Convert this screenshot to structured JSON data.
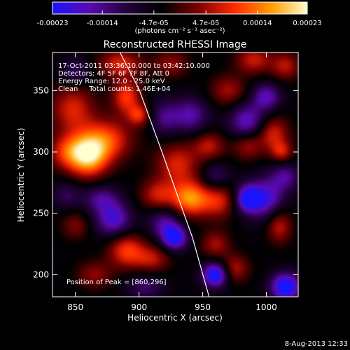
{
  "chart_data": {
    "type": "heatmap",
    "title": "Reconstructed RHESSI Image",
    "xlabel": "Heliocentric X (arcsec)",
    "ylabel": "Heliocentric Y (arcsec)",
    "xlim": [
      832,
      1025
    ],
    "ylim": [
      182,
      381
    ],
    "x_ticks": [
      850,
      900,
      950,
      1000
    ],
    "y_ticks": [
      200,
      250,
      300,
      350
    ],
    "colorbar": {
      "range": [
        -0.00023,
        0.00023
      ],
      "tick_labels": [
        "-0.00023",
        "-0.00014",
        "-4.7e-05",
        "4.7e-05",
        "0.00014",
        "0.00023"
      ],
      "units_label": "(photons cm⁻² s⁻¹ asec⁻²)",
      "colors": [
        "#1a14ff",
        "#5b0ab0",
        "#260040",
        "#000000",
        "#7a0000",
        "#ff2a00",
        "#ff9a00",
        "#ffffd0"
      ]
    },
    "annotations": {
      "time_range": "17-Oct-2011 03:36:10.000 to 03:42:10.000",
      "detectors": "Detectors: 4F 5F 6F 7F 8F, Att 0",
      "energy_range": "Energy Range: 12.0 - 25.0 keV",
      "clean_total": "Clean     Total counts: 1.46E+04",
      "peak_position": "Position of Peak = [860,296]"
    },
    "peak": {
      "x": 860,
      "y": 296
    },
    "limb_curve": [
      [
        885,
        381
      ],
      [
        900,
        351
      ],
      [
        918,
        300
      ],
      [
        930,
        265
      ],
      [
        942,
        230
      ],
      [
        955,
        182
      ]
    ],
    "blobs": [
      {
        "x": 860,
        "y": 297,
        "v": 0.00023,
        "sx": 11,
        "sy": 12
      },
      {
        "x": 875,
        "y": 310,
        "v": 0.00014,
        "sx": 14,
        "sy": 12
      },
      {
        "x": 843,
        "y": 300,
        "v": 0.00011,
        "sx": 10,
        "sy": 10
      },
      {
        "x": 848,
        "y": 335,
        "v": 0.00012,
        "sx": 12,
        "sy": 14
      },
      {
        "x": 890,
        "y": 345,
        "v": 0.00014,
        "sx": 8,
        "sy": 10
      },
      {
        "x": 900,
        "y": 330,
        "v": 0.00012,
        "sx": 6,
        "sy": 6
      },
      {
        "x": 885,
        "y": 372,
        "v": 0.00012,
        "sx": 12,
        "sy": 8
      },
      {
        "x": 925,
        "y": 372,
        "v": 8e-05,
        "sx": 10,
        "sy": 8
      },
      {
        "x": 930,
        "y": 290,
        "v": 0.00012,
        "sx": 12,
        "sy": 12
      },
      {
        "x": 940,
        "y": 262,
        "v": 0.00019,
        "sx": 10,
        "sy": 10
      },
      {
        "x": 962,
        "y": 260,
        "v": 0.00012,
        "sx": 10,
        "sy": 10
      },
      {
        "x": 955,
        "y": 305,
        "v": 0.0001,
        "sx": 9,
        "sy": 8
      },
      {
        "x": 915,
        "y": 265,
        "v": 0.00011,
        "sx": 10,
        "sy": 9
      },
      {
        "x": 970,
        "y": 350,
        "v": 9e-05,
        "sx": 10,
        "sy": 9
      },
      {
        "x": 985,
        "y": 305,
        "v": 9e-05,
        "sx": 8,
        "sy": 8
      },
      {
        "x": 1005,
        "y": 315,
        "v": 0.00012,
        "sx": 9,
        "sy": 10
      },
      {
        "x": 1012,
        "y": 300,
        "v": 0.0001,
        "sx": 6,
        "sy": 6
      },
      {
        "x": 1010,
        "y": 240,
        "v": 0.00011,
        "sx": 7,
        "sy": 10
      },
      {
        "x": 890,
        "y": 220,
        "v": 0.00014,
        "sx": 10,
        "sy": 10
      },
      {
        "x": 910,
        "y": 213,
        "v": 0.0001,
        "sx": 10,
        "sy": 8
      },
      {
        "x": 960,
        "y": 225,
        "v": 9e-05,
        "sx": 8,
        "sy": 8
      },
      {
        "x": 975,
        "y": 205,
        "v": 0.0001,
        "sx": 8,
        "sy": 8
      },
      {
        "x": 850,
        "y": 240,
        "v": 7e-05,
        "sx": 8,
        "sy": 8
      },
      {
        "x": 865,
        "y": 200,
        "v": 8e-05,
        "sx": 10,
        "sy": 8
      },
      {
        "x": 990,
        "y": 375,
        "v": 0.00011,
        "sx": 10,
        "sy": 8
      },
      {
        "x": 1015,
        "y": 370,
        "v": 0.0001,
        "sx": 8,
        "sy": 8
      },
      {
        "x": 880,
        "y": 245,
        "v": -0.00015,
        "sx": 10,
        "sy": 10
      },
      {
        "x": 870,
        "y": 262,
        "v": -0.0001,
        "sx": 10,
        "sy": 8
      },
      {
        "x": 960,
        "y": 200,
        "v": -0.00022,
        "sx": 7,
        "sy": 7
      },
      {
        "x": 1015,
        "y": 190,
        "v": -0.00022,
        "sx": 8,
        "sy": 8
      },
      {
        "x": 1000,
        "y": 262,
        "v": -0.00015,
        "sx": 10,
        "sy": 12
      },
      {
        "x": 985,
        "y": 262,
        "v": -0.00019,
        "sx": 7,
        "sy": 8
      },
      {
        "x": 985,
        "y": 325,
        "v": -0.00014,
        "sx": 10,
        "sy": 10
      },
      {
        "x": 1000,
        "y": 345,
        "v": -0.00013,
        "sx": 8,
        "sy": 8
      },
      {
        "x": 928,
        "y": 230,
        "v": -0.00019,
        "sx": 7,
        "sy": 7
      },
      {
        "x": 920,
        "y": 242,
        "v": -0.00011,
        "sx": 9,
        "sy": 9
      },
      {
        "x": 940,
        "y": 330,
        "v": -0.00012,
        "sx": 10,
        "sy": 10
      },
      {
        "x": 920,
        "y": 328,
        "v": -9e-05,
        "sx": 8,
        "sy": 10
      },
      {
        "x": 850,
        "y": 365,
        "v": -8e-05,
        "sx": 8,
        "sy": 8
      },
      {
        "x": 843,
        "y": 265,
        "v": -7e-05,
        "sx": 8,
        "sy": 8
      },
      {
        "x": 1015,
        "y": 280,
        "v": -0.0001,
        "sx": 8,
        "sy": 8
      },
      {
        "x": 905,
        "y": 190,
        "v": -8e-05,
        "sx": 10,
        "sy": 8
      },
      {
        "x": 960,
        "y": 280,
        "v": -8e-05,
        "sx": 8,
        "sy": 8
      }
    ]
  },
  "footer": {
    "timestamp": "8-Aug-2013 12:33"
  }
}
